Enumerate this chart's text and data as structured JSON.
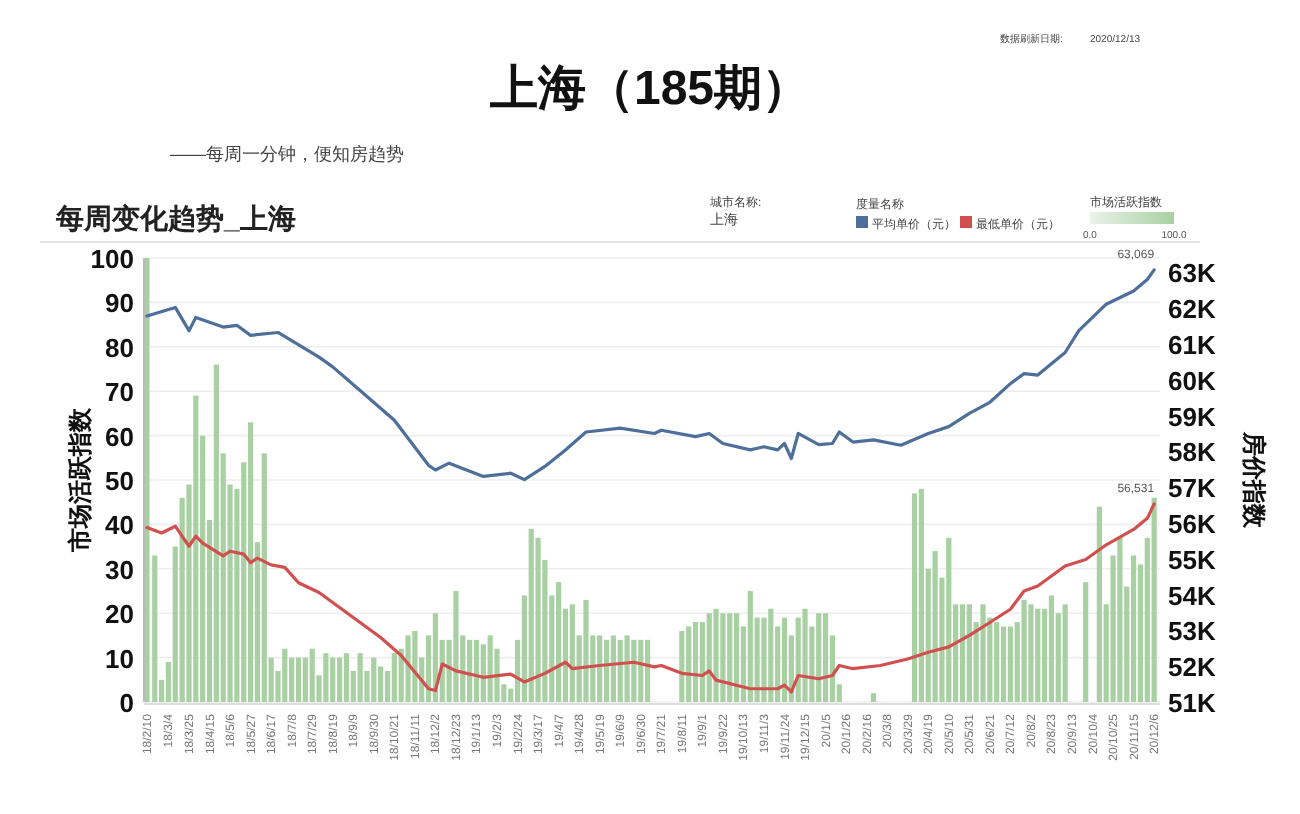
{
  "chart_data": {
    "type": "bar",
    "title": "上海（185期）",
    "subtitle": "每周变化趋势_上海",
    "annotations": [
      "——每周一分钟，便知房趋势",
      "数据刷新日期:",
      "2020/12/13",
      "城市名称:",
      "上海"
    ],
    "ylabel": "市场活跃指数",
    "y2label": "房价指数",
    "legend_title": "度量名称",
    "legend": "top",
    "grid": "y",
    "clabel": "市场活跃指数",
    "clim": [
      0,
      100
    ],
    "cticks": [
      {
        "value": 0,
        "label": "0.0"
      },
      {
        "value": 100,
        "label": "100.0"
      }
    ],
    "xlim": [
      "2018-02-07",
      "2020-12-12"
    ],
    "ylim": [
      0,
      100
    ],
    "yticks": [
      0,
      10,
      20,
      30,
      40,
      50,
      60,
      70,
      80,
      90,
      100
    ],
    "y2lim": [
      51000,
      63400
    ],
    "y2ticks": [
      {
        "value": 51000,
        "label": "51K"
      },
      {
        "value": 52000,
        "label": "52K"
      },
      {
        "value": 53000,
        "label": "53K"
      },
      {
        "value": 54000,
        "label": "54K"
      },
      {
        "value": 55000,
        "label": "55K"
      },
      {
        "value": 56000,
        "label": "56K"
      },
      {
        "value": 57000,
        "label": "57K"
      },
      {
        "value": 58000,
        "label": "58K"
      },
      {
        "value": 59000,
        "label": "59K"
      },
      {
        "value": 60000,
        "label": "60K"
      },
      {
        "value": 61000,
        "label": "61K"
      },
      {
        "value": 62000,
        "label": "62K"
      },
      {
        "value": 63000,
        "label": "63K"
      }
    ],
    "xticks": [
      {
        "value": "2018-02-10",
        "label": "18/2/10"
      },
      {
        "value": "2018-03-04",
        "label": "18/3/4"
      },
      {
        "value": "2018-03-25",
        "label": "18/3/25"
      },
      {
        "value": "2018-04-15",
        "label": "18/4/15"
      },
      {
        "value": "2018-05-06",
        "label": "18/5/6"
      },
      {
        "value": "2018-05-27",
        "label": "18/5/27"
      },
      {
        "value": "2018-06-17",
        "label": "18/6/17"
      },
      {
        "value": "2018-07-08",
        "label": "18/7/8"
      },
      {
        "value": "2018-07-29",
        "label": "18/7/29"
      },
      {
        "value": "2018-08-19",
        "label": "18/8/19"
      },
      {
        "value": "2018-09-09",
        "label": "18/9/9"
      },
      {
        "value": "2018-09-30",
        "label": "18/9/30"
      },
      {
        "value": "2018-10-21",
        "label": "18/10/21"
      },
      {
        "value": "2018-11-11",
        "label": "18/11/11"
      },
      {
        "value": "2018-12-02",
        "label": "18/12/2"
      },
      {
        "value": "2018-12-23",
        "label": "18/12/23"
      },
      {
        "value": "2019-01-13",
        "label": "19/1/13"
      },
      {
        "value": "2019-02-03",
        "label": "19/2/3"
      },
      {
        "value": "2019-02-24",
        "label": "19/2/24"
      },
      {
        "value": "2019-03-17",
        "label": "19/3/17"
      },
      {
        "value": "2019-04-07",
        "label": "19/4/7"
      },
      {
        "value": "2019-04-28",
        "label": "19/4/28"
      },
      {
        "value": "2019-05-19",
        "label": "19/5/19"
      },
      {
        "value": "2019-06-09",
        "label": "19/6/9"
      },
      {
        "value": "2019-06-30",
        "label": "19/6/30"
      },
      {
        "value": "2019-07-21",
        "label": "19/7/21"
      },
      {
        "value": "2019-08-11",
        "label": "19/8/11"
      },
      {
        "value": "2019-09-01",
        "label": "19/9/1"
      },
      {
        "value": "2019-09-22",
        "label": "19/9/22"
      },
      {
        "value": "2019-10-13",
        "label": "19/10/13"
      },
      {
        "value": "2019-11-03",
        "label": "19/11/3"
      },
      {
        "value": "2019-11-24",
        "label": "19/11/24"
      },
      {
        "value": "2019-12-15",
        "label": "19/12/15"
      },
      {
        "value": "2020-01-05",
        "label": "20/1/5"
      },
      {
        "value": "2020-01-26",
        "label": "20/1/26"
      },
      {
        "value": "2020-02-16",
        "label": "20/2/16"
      },
      {
        "value": "2020-03-08",
        "label": "20/3/8"
      },
      {
        "value": "2020-03-29",
        "label": "20/3/29"
      },
      {
        "value": "2020-04-19",
        "label": "20/4/19"
      },
      {
        "value": "2020-05-10",
        "label": "20/5/10"
      },
      {
        "value": "2020-05-31",
        "label": "20/5/31"
      },
      {
        "value": "2020-06-21",
        "label": "20/6/21"
      },
      {
        "value": "2020-07-12",
        "label": "20/7/12"
      },
      {
        "value": "2020-08-02",
        "label": "20/8/2"
      },
      {
        "value": "2020-08-23",
        "label": "20/8/23"
      },
      {
        "value": "2020-09-13",
        "label": "20/9/13"
      },
      {
        "value": "2020-10-04",
        "label": "20/10/4"
      },
      {
        "value": "2020-10-25",
        "label": "20/10/25"
      },
      {
        "value": "2020-11-15",
        "label": "20/11/15"
      },
      {
        "value": "2020-12-06",
        "label": "20/12/6"
      }
    ],
    "series": [
      {
        "color": "#a8d0a3",
        "x": [
          "2018-02-10",
          "2018-02-18",
          "2018-02-25",
          "2018-03-04",
          "2018-03-11",
          "2018-03-18",
          "2018-03-25",
          "2018-04-01",
          "2018-04-08",
          "2018-04-15",
          "2018-04-22",
          "2018-04-29",
          "2018-05-06",
          "2018-05-13",
          "2018-05-20",
          "2018-05-27",
          "2018-06-03",
          "2018-06-10",
          "2018-06-17",
          "2018-06-24",
          "2018-07-01",
          "2018-07-08",
          "2018-07-15",
          "2018-07-22",
          "2018-07-29",
          "2018-08-05",
          "2018-08-12",
          "2018-08-19",
          "2018-08-26",
          "2018-09-02",
          "2018-09-09",
          "2018-09-16",
          "2018-09-23",
          "2018-09-30",
          "2018-10-07",
          "2018-10-14",
          "2018-10-21",
          "2018-10-28",
          "2018-11-04",
          "2018-11-11",
          "2018-11-18",
          "2018-11-25",
          "2018-12-02",
          "2018-12-09",
          "2018-12-16",
          "2018-12-23",
          "2018-12-30",
          "2019-01-06",
          "2019-01-13",
          "2019-01-20",
          "2019-01-27",
          "2019-02-03",
          "2019-02-10",
          "2019-02-17",
          "2019-02-24",
          "2019-03-03",
          "2019-03-10",
          "2019-03-17",
          "2019-03-24",
          "2019-03-31",
          "2019-04-07",
          "2019-04-14",
          "2019-04-21",
          "2019-04-28",
          "2019-05-05",
          "2019-05-12",
          "2019-05-19",
          "2019-05-26",
          "2019-06-02",
          "2019-06-09",
          "2019-06-16",
          "2019-06-23",
          "2019-06-30",
          "2019-07-07",
          "2019-07-14",
          "2019-07-21",
          "2019-07-28",
          "2019-08-04",
          "2019-08-11",
          "2019-08-18",
          "2019-08-25",
          "2019-09-01",
          "2019-09-08",
          "2019-09-15",
          "2019-09-22",
          "2019-09-29",
          "2019-10-06",
          "2019-10-13",
          "2019-10-20",
          "2019-10-27",
          "2019-11-03",
          "2019-11-10",
          "2019-11-17",
          "2019-11-24",
          "2019-12-01",
          "2019-12-08",
          "2019-12-15",
          "2019-12-22",
          "2019-12-29",
          "2020-01-05",
          "2020-01-12",
          "2020-01-19",
          "2020-01-26",
          "2020-02-02",
          "2020-02-09",
          "2020-02-16",
          "2020-02-23",
          "2020-03-01",
          "2020-03-08",
          "2020-03-15",
          "2020-03-22",
          "2020-03-29",
          "2020-04-05",
          "2020-04-12",
          "2020-04-19",
          "2020-04-26",
          "2020-05-03",
          "2020-05-10",
          "2020-05-17",
          "2020-05-24",
          "2020-05-31",
          "2020-06-07",
          "2020-06-14",
          "2020-06-21",
          "2020-06-28",
          "2020-07-05",
          "2020-07-12",
          "2020-07-19",
          "2020-07-26",
          "2020-08-02",
          "2020-08-09",
          "2020-08-16",
          "2020-08-23",
          "2020-08-30",
          "2020-09-06",
          "2020-09-13",
          "2020-09-20",
          "2020-09-27",
          "2020-10-04",
          "2020-10-11",
          "2020-10-18",
          "2020-10-25",
          "2020-11-01",
          "2020-11-08",
          "2020-11-15",
          "2020-11-22",
          "2020-11-29",
          "2020-12-06"
        ],
        "values": [
          100,
          33,
          5,
          9,
          35,
          46,
          49,
          69,
          60,
          41,
          76,
          56,
          49,
          48,
          54,
          63,
          36,
          56,
          10,
          7,
          12,
          10,
          10,
          10,
          12,
          6,
          11,
          10,
          10,
          11,
          7,
          11,
          7,
          10,
          8,
          7,
          11,
          12,
          15,
          16,
          10,
          15,
          20,
          14,
          14,
          25,
          15,
          14,
          14,
          13,
          15,
          12,
          4,
          3,
          14,
          24,
          39,
          37,
          32,
          24,
          27,
          21,
          22,
          15,
          23,
          15,
          15,
          14,
          15,
          14,
          15,
          14,
          14,
          14,
          0,
          0,
          0,
          0,
          16,
          17,
          18,
          18,
          20,
          21,
          20,
          20,
          20,
          17,
          25,
          19,
          19,
          21,
          17,
          19,
          15,
          19,
          21,
          17,
          20,
          20,
          15,
          4,
          0,
          0,
          0,
          0,
          2,
          0,
          0,
          0,
          0,
          0,
          47,
          48,
          30,
          34,
          28,
          37,
          22,
          22,
          22,
          18,
          22,
          19,
          18,
          17,
          17,
          18,
          23,
          22,
          21,
          21,
          24,
          20,
          22,
          0,
          0,
          27,
          0,
          44,
          22,
          33,
          37,
          26,
          33,
          31,
          37,
          46
        ]
      },
      {
        "type": "line",
        "name": "平均单价（元）",
        "axis": "y2",
        "color": "#4e6f9a",
        "x": [
          "2018-02-10",
          "2018-03-11",
          "2018-03-25",
          "2018-04-01",
          "2018-04-29",
          "2018-05-13",
          "2018-05-27",
          "2018-06-24",
          "2018-08-05",
          "2018-08-19",
          "2018-09-16",
          "2018-10-21",
          "2018-11-25",
          "2018-12-02",
          "2018-12-16",
          "2019-01-20",
          "2019-02-17",
          "2019-03-03",
          "2019-03-24",
          "2019-04-14",
          "2019-05-05",
          "2019-06-09",
          "2019-07-14",
          "2019-07-21",
          "2019-08-25",
          "2019-09-08",
          "2019-09-22",
          "2019-10-20",
          "2019-11-03",
          "2019-11-17",
          "2019-11-24",
          "2019-12-01",
          "2019-12-08",
          "2019-12-29",
          "2020-01-12",
          "2020-01-19",
          "2020-02-02",
          "2020-02-23",
          "2020-03-22",
          "2020-04-19",
          "2020-05-10",
          "2020-05-31",
          "2020-06-21",
          "2020-07-12",
          "2020-07-26",
          "2020-08-09",
          "2020-09-06",
          "2020-09-20",
          "2020-10-18",
          "2020-11-15",
          "2020-11-29",
          "2020-12-06"
        ],
        "values": [
          61780,
          62020,
          61370,
          61740,
          61470,
          61520,
          61240,
          61320,
          60630,
          60360,
          59700,
          58870,
          57610,
          57480,
          57670,
          57300,
          57390,
          57210,
          57580,
          58040,
          58540,
          58650,
          58500,
          58590,
          58410,
          58500,
          58220,
          58040,
          58130,
          58040,
          58220,
          57800,
          58500,
          58190,
          58220,
          58540,
          58260,
          58320,
          58170,
          58500,
          58690,
          59060,
          59370,
          59890,
          60170,
          60130,
          60760,
          61370,
          62110,
          62480,
          62800,
          63069
        ],
        "value_labels": [
          null,
          null,
          null,
          null,
          null,
          null,
          null,
          null,
          null,
          null,
          null,
          null,
          null,
          null,
          null,
          null,
          null,
          null,
          null,
          null,
          null,
          null,
          null,
          null,
          null,
          null,
          null,
          null,
          null,
          null,
          null,
          null,
          null,
          null,
          null,
          null,
          null,
          null,
          null,
          null,
          null,
          null,
          null,
          null,
          null,
          null,
          null,
          null,
          null,
          null,
          null,
          "63,069"
        ]
      },
      {
        "type": "line",
        "name": "最低单价（元）",
        "axis": "y2",
        "color": "#d0504f",
        "x": [
          "2018-02-10",
          "2018-02-25",
          "2018-03-11",
          "2018-03-25",
          "2018-04-01",
          "2018-04-08",
          "2018-04-29",
          "2018-05-06",
          "2018-05-20",
          "2018-05-27",
          "2018-06-03",
          "2018-06-17",
          "2018-07-01",
          "2018-07-15",
          "2018-08-05",
          "2018-08-19",
          "2018-09-16",
          "2018-10-07",
          "2018-10-28",
          "2018-11-25",
          "2018-12-02",
          "2018-12-09",
          "2018-12-23",
          "2019-01-20",
          "2019-02-17",
          "2019-03-03",
          "2019-03-24",
          "2019-04-14",
          "2019-04-21",
          "2019-05-19",
          "2019-06-23",
          "2019-07-14",
          "2019-07-21",
          "2019-08-11",
          "2019-09-01",
          "2019-09-08",
          "2019-09-15",
          "2019-10-20",
          "2019-11-17",
          "2019-11-24",
          "2019-12-01",
          "2019-12-08",
          "2019-12-29",
          "2020-01-12",
          "2020-01-19",
          "2020-02-02",
          "2020-03-01",
          "2020-03-29",
          "2020-04-19",
          "2020-05-10",
          "2020-05-31",
          "2020-06-21",
          "2020-07-12",
          "2020-07-26",
          "2020-08-09",
          "2020-09-06",
          "2020-09-27",
          "2020-10-18",
          "2020-11-15",
          "2020-11-29",
          "2020-12-06"
        ],
        "values": [
          55870,
          55720,
          55910,
          55350,
          55630,
          55440,
          55080,
          55210,
          55130,
          54890,
          55020,
          54830,
          54760,
          54330,
          54060,
          53780,
          53220,
          52800,
          52300,
          51370,
          51320,
          52060,
          51870,
          51690,
          51780,
          51560,
          51800,
          52110,
          51930,
          52020,
          52110,
          51980,
          52020,
          51800,
          51740,
          51870,
          51610,
          51370,
          51370,
          51470,
          51280,
          51740,
          51650,
          51740,
          52020,
          51930,
          52020,
          52200,
          52390,
          52540,
          52860,
          53220,
          53590,
          54100,
          54240,
          54800,
          54980,
          55390,
          55820,
          56130,
          56531
        ],
        "value_labels": [
          null,
          null,
          null,
          null,
          null,
          null,
          null,
          null,
          null,
          null,
          null,
          null,
          null,
          null,
          null,
          null,
          null,
          null,
          null,
          null,
          null,
          null,
          null,
          null,
          null,
          null,
          null,
          null,
          null,
          null,
          null,
          null,
          null,
          null,
          null,
          null,
          null,
          null,
          null,
          null,
          null,
          null,
          null,
          null,
          null,
          null,
          null,
          null,
          null,
          null,
          null,
          null,
          null,
          null,
          null,
          null,
          null,
          null,
          null,
          null,
          "56,531"
        ]
      }
    ]
  }
}
